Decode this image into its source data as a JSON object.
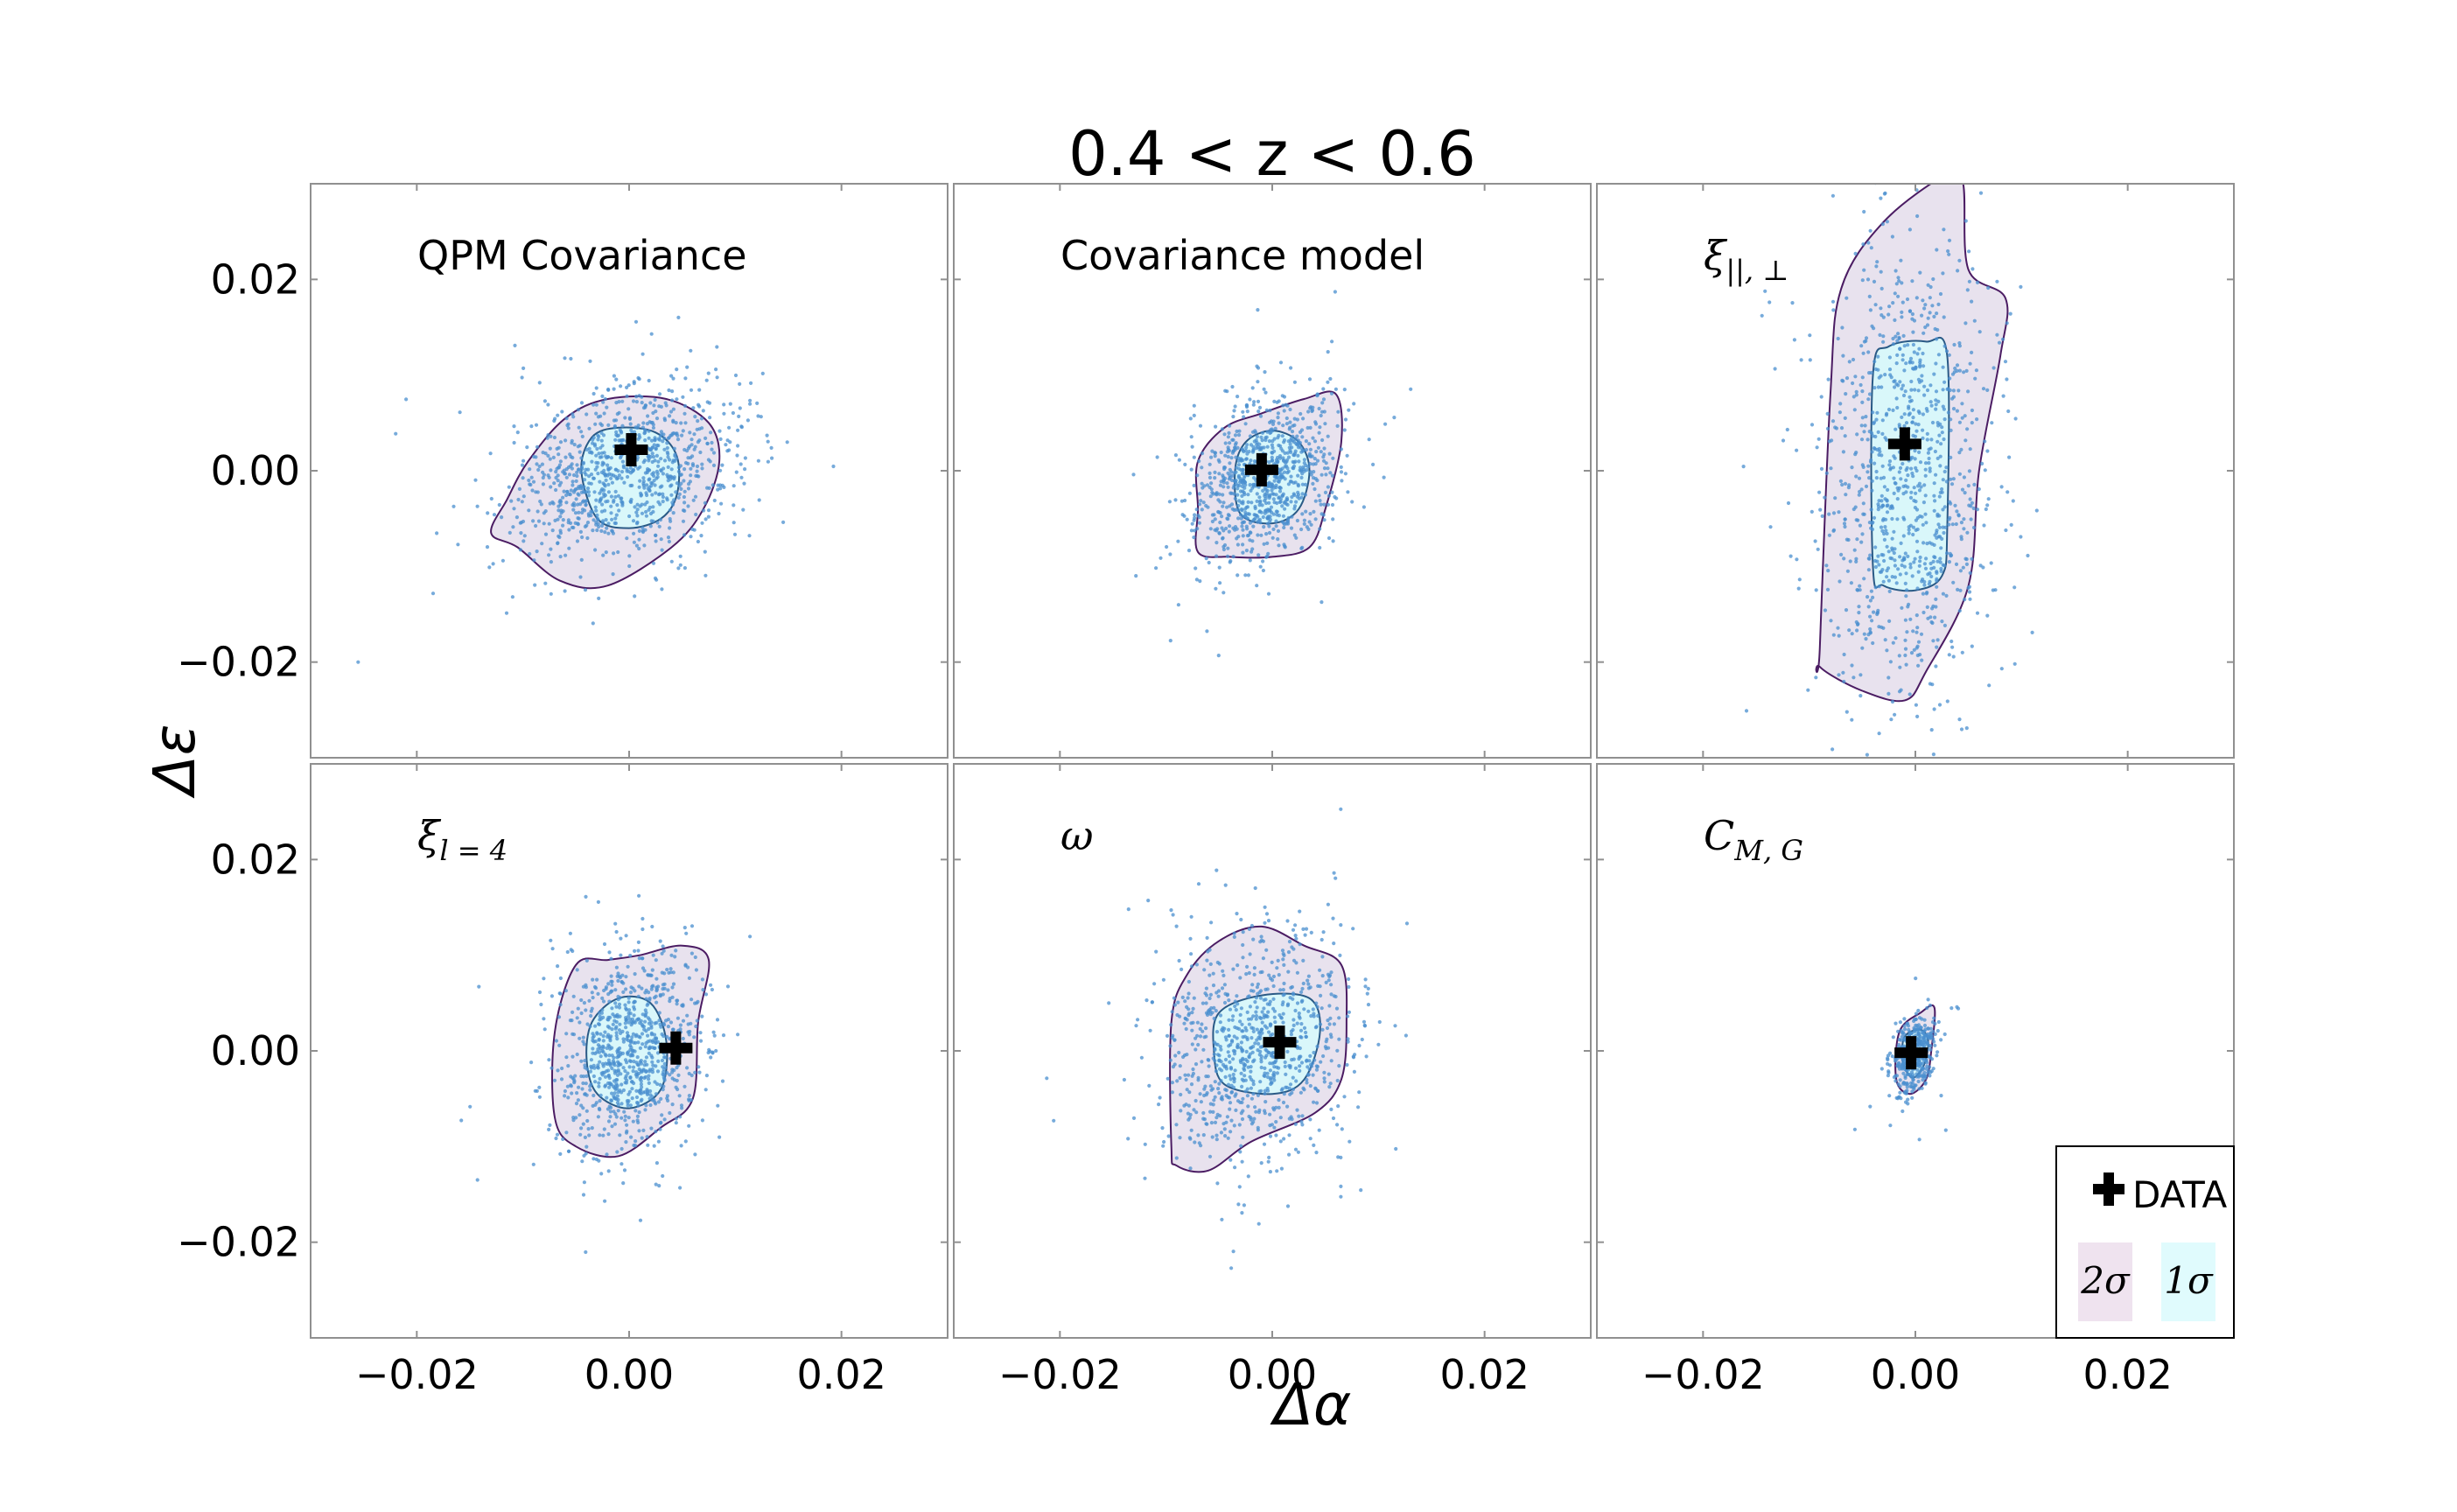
{
  "chart_data": {
    "type": "scatter",
    "title": "0.4 < z < 0.6",
    "xlabel": "Δα",
    "ylabel": "Δε",
    "xlim": [
      -0.03,
      0.03
    ],
    "ylim": [
      -0.03,
      0.03
    ],
    "xticks": [
      -0.02,
      0.0,
      0.02
    ],
    "yticks": [
      -0.02,
      0.0,
      0.02
    ],
    "xtick_labels": [
      "−0.02",
      "0.00",
      "0.02"
    ],
    "ytick_labels": [
      "−0.02",
      "0.00",
      "0.02"
    ],
    "colors": {
      "points": "#4a8fcf",
      "contour_2sigma_fill": "#e8e2ee",
      "contour_2sigma_line": "#4b1c63",
      "contour_1sigma_fill": "#d9f7fa",
      "contour_1sigma_line": "#2a5a86",
      "data_marker": "#000000"
    },
    "legend": {
      "position": "bottom-right",
      "data_label": "DATA",
      "two_sigma_label": "2σ",
      "one_sigma_label": "1σ"
    },
    "panels": [
      {
        "id": "qpm",
        "label": "QPM Covariance",
        "label_math": false,
        "data_point": [
          0.0002,
          0.0022
        ],
        "center": [
          -0.0004,
          -0.0002
        ],
        "spread": [
          0.0053,
          0.0046
        ],
        "rho": 0.22,
        "n_points": 1000,
        "outlier_amp": 1.6,
        "sigma1": [
          [
            -0.0045,
            0.0
          ],
          [
            -0.0035,
            0.0035
          ],
          [
            -0.001,
            0.0045
          ],
          [
            0.0025,
            0.004
          ],
          [
            0.0045,
            0.0015
          ],
          [
            0.0045,
            -0.0025
          ],
          [
            0.003,
            -0.005
          ],
          [
            0.0,
            -0.006
          ],
          [
            -0.003,
            -0.005
          ]
        ],
        "sigma2": [
          [
            -0.0115,
            -0.003
          ],
          [
            -0.0095,
            0.001
          ],
          [
            -0.006,
            0.0055
          ],
          [
            -0.002,
            0.0075
          ],
          [
            0.0035,
            0.0075
          ],
          [
            0.0075,
            0.005
          ],
          [
            0.0085,
            0.001
          ],
          [
            0.007,
            -0.004
          ],
          [
            0.004,
            -0.008
          ],
          [
            -0.002,
            -0.012
          ],
          [
            -0.0065,
            -0.0115
          ],
          [
            -0.0105,
            -0.008
          ],
          [
            -0.013,
            -0.0065
          ]
        ]
      },
      {
        "id": "covmodel",
        "label": "Covariance model",
        "label_math": false,
        "data_point": [
          -0.001,
          0.0001
        ],
        "center": [
          -0.0006,
          -0.0006
        ],
        "spread": [
          0.0035,
          0.0042
        ],
        "rho": 0.3,
        "n_points": 900,
        "outlier_amp": 1.7,
        "sigma1": [
          [
            -0.0035,
            0.0
          ],
          [
            -0.0025,
            0.003
          ],
          [
            0.0,
            0.0042
          ],
          [
            0.0025,
            0.003
          ],
          [
            0.0035,
            0.0
          ],
          [
            0.0025,
            -0.004
          ],
          [
            0.0,
            -0.0055
          ],
          [
            -0.003,
            -0.0045
          ]
        ],
        "sigma2": [
          [
            -0.007,
            -0.004
          ],
          [
            -0.007,
            0.001
          ],
          [
            -0.0045,
            0.0045
          ],
          [
            -0.001,
            0.006
          ],
          [
            0.003,
            0.0075
          ],
          [
            0.006,
            0.008
          ],
          [
            0.0065,
            0.003
          ],
          [
            0.005,
            -0.004
          ],
          [
            0.0035,
            -0.008
          ],
          [
            0.0,
            -0.009
          ],
          [
            -0.004,
            -0.009
          ],
          [
            -0.007,
            -0.0085
          ]
        ]
      },
      {
        "id": "xi_par_perp",
        "label": "ξ",
        "sub": "||, ⊥",
        "label_math": true,
        "data_point": [
          -0.001,
          0.0028
        ],
        "center": [
          -0.0008,
          0.0
        ],
        "spread": [
          0.004,
          0.012
        ],
        "rho": 0.0,
        "n_points": 1000,
        "outlier_amp": 1.7,
        "sigma1": [
          [
            -0.004,
            -0.01
          ],
          [
            -0.004,
            0.01
          ],
          [
            -0.0025,
            0.013
          ],
          [
            0.001,
            0.0135
          ],
          [
            0.003,
            0.012
          ],
          [
            0.003,
            -0.006
          ],
          [
            0.0025,
            -0.011
          ],
          [
            0.0,
            -0.0125
          ],
          [
            -0.003,
            -0.012
          ]
        ],
        "sigma2": [
          [
            -0.009,
            -0.0185
          ],
          [
            -0.008,
            0.008
          ],
          [
            -0.007,
            0.019
          ],
          [
            -0.003,
            0.026
          ],
          [
            0.003,
            0.031
          ],
          [
            0.0045,
            0.03
          ],
          [
            0.005,
            0.021
          ],
          [
            0.0085,
            0.018
          ],
          [
            0.008,
            0.012
          ],
          [
            0.006,
            0.0
          ],
          [
            0.005,
            -0.012
          ],
          [
            0.001,
            -0.021
          ],
          [
            -0.001,
            -0.024
          ],
          [
            -0.005,
            -0.023
          ],
          [
            -0.009,
            -0.0205
          ]
        ]
      },
      {
        "id": "xi_l4",
        "label": "ξ",
        "sub": "l = 4",
        "label_math": true,
        "data_point": [
          0.0044,
          0.0003
        ],
        "center": [
          0.0001,
          0.0002
        ],
        "spread": [
          0.0033,
          0.005
        ],
        "rho": 0.1,
        "n_points": 900,
        "outlier_amp": 1.8,
        "sigma1": [
          [
            -0.004,
            -0.001
          ],
          [
            -0.0035,
            0.003
          ],
          [
            -0.001,
            0.0055
          ],
          [
            0.002,
            0.005
          ],
          [
            0.0035,
            0.001
          ],
          [
            0.003,
            -0.004
          ],
          [
            0.0,
            -0.006
          ],
          [
            -0.003,
            -0.0045
          ]
        ],
        "sigma2": [
          [
            -0.007,
            -0.007
          ],
          [
            -0.007,
            0.002
          ],
          [
            -0.005,
            0.009
          ],
          [
            -0.002,
            0.0095
          ],
          [
            0.001,
            0.01
          ],
          [
            0.005,
            0.011
          ],
          [
            0.0075,
            0.0095
          ],
          [
            0.0065,
            0.003
          ],
          [
            0.006,
            -0.005
          ],
          [
            0.003,
            -0.008
          ],
          [
            -0.001,
            -0.011
          ],
          [
            -0.005,
            -0.01
          ]
        ]
      },
      {
        "id": "omega",
        "label": "ω",
        "label_math": true,
        "data_point": [
          0.0007,
          0.0009
        ],
        "center": [
          -0.0015,
          0.0005
        ],
        "spread": [
          0.0045,
          0.006
        ],
        "rho": 0.1,
        "n_points": 900,
        "outlier_amp": 1.8,
        "sigma1": [
          [
            -0.0055,
            0.0
          ],
          [
            -0.005,
            0.004
          ],
          [
            -0.001,
            0.0058
          ],
          [
            0.0035,
            0.0055
          ],
          [
            0.0045,
            0.002
          ],
          [
            0.003,
            -0.003
          ],
          [
            0.0,
            -0.0045
          ],
          [
            -0.0045,
            -0.0035
          ]
        ],
        "sigma2": [
          [
            -0.0095,
            -0.01
          ],
          [
            -0.0095,
            0.003
          ],
          [
            -0.008,
            0.008
          ],
          [
            -0.005,
            0.0115
          ],
          [
            -0.001,
            0.013
          ],
          [
            0.003,
            0.011
          ],
          [
            0.0065,
            0.009
          ],
          [
            0.007,
            0.003
          ],
          [
            0.0065,
            -0.003
          ],
          [
            0.004,
            -0.0065
          ],
          [
            -0.002,
            -0.0095
          ],
          [
            -0.006,
            -0.0125
          ],
          [
            -0.009,
            -0.012
          ]
        ]
      },
      {
        "id": "cmg",
        "label": "C",
        "sub": "M, G",
        "label_math": true,
        "data_point": [
          -0.0004,
          -0.0002
        ],
        "center": [
          -0.0002,
          -0.0004
        ],
        "spread": [
          0.001,
          0.002
        ],
        "rho": 0.3,
        "n_points": 420,
        "outlier_amp": 2.2,
        "sigma1": [
          [
            -0.0012,
            -0.001
          ],
          [
            -0.001,
            0.0015
          ],
          [
            0.0005,
            0.0022
          ],
          [
            0.0012,
            0.001
          ],
          [
            0.0008,
            -0.0015
          ],
          [
            -0.0003,
            -0.0028
          ]
        ],
        "sigma2": [
          [
            -0.0018,
            -0.003
          ],
          [
            -0.0015,
            0.002
          ],
          [
            0.0005,
            0.004
          ],
          [
            0.0018,
            0.0045
          ],
          [
            0.0015,
            0.0
          ],
          [
            0.001,
            -0.003
          ],
          [
            -0.0005,
            -0.0045
          ]
        ]
      }
    ]
  }
}
